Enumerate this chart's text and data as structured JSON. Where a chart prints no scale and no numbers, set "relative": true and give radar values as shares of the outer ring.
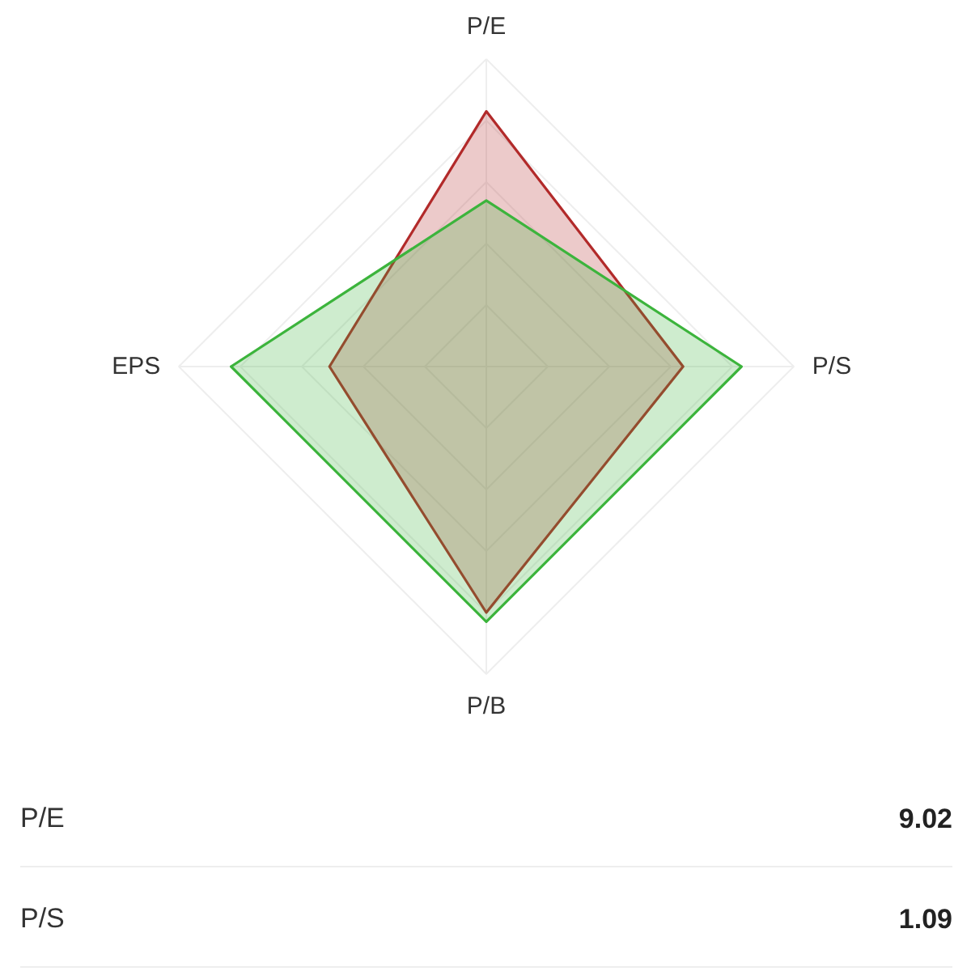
{
  "chart_data": {
    "type": "radar",
    "relative": true,
    "categories": [
      "P/E",
      "P/S",
      "P/B",
      "EPS"
    ],
    "series": [
      {
        "color": "#b22a2a",
        "values": [
          0.83,
          0.64,
          0.8,
          0.51
        ]
      },
      {
        "color": "#3cb43c",
        "values": [
          0.54,
          0.83,
          0.83,
          0.83
        ]
      }
    ],
    "annotations": [
      "P/E",
      "9.02",
      "P/S",
      "1.09"
    ]
  }
}
